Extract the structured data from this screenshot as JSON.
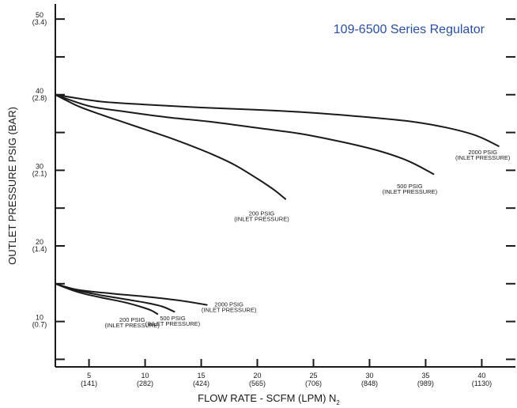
{
  "chart_data": {
    "type": "line",
    "title": "109-6500 Series Regulator",
    "title_color": "#2a4f9e",
    "xlabel": "FLOW RATE - SCFM (LPM) N",
    "xlabel_subscript": "2",
    "ylabel": "OUTLET PRESSURE PSIG (BAR)",
    "xlim": [
      2,
      43
    ],
    "ylim": [
      4,
      52
    ],
    "grid": false,
    "x_ticks": [
      {
        "value": 5,
        "label": "5",
        "sublabel": "(141)"
      },
      {
        "value": 10,
        "label": "10",
        "sublabel": "(282)"
      },
      {
        "value": 15,
        "label": "15",
        "sublabel": "(424)"
      },
      {
        "value": 20,
        "label": "20",
        "sublabel": "(565)"
      },
      {
        "value": 25,
        "label": "25",
        "sublabel": "(706)"
      },
      {
        "value": 30,
        "label": "30",
        "sublabel": "(848)"
      },
      {
        "value": 35,
        "label": "35",
        "sublabel": "(989)"
      },
      {
        "value": 40,
        "label": "40",
        "sublabel": "(1130)"
      }
    ],
    "y_ticks": [
      {
        "value": 10,
        "label": "10",
        "sublabel": "(0.7)"
      },
      {
        "value": 20,
        "label": "20",
        "sublabel": "(1.4)"
      },
      {
        "value": 30,
        "label": "30",
        "sublabel": "(2.1)"
      },
      {
        "value": 40,
        "label": "40",
        "sublabel": "(2.8)"
      },
      {
        "value": 50,
        "label": "50",
        "sublabel": "(3.4)"
      }
    ],
    "y_minor_ticks": [
      5,
      15,
      25,
      35,
      45
    ],
    "series": [
      {
        "name": "2000 PSIG (INLET PRESSURE)",
        "label_lines": [
          "2000 PSIG",
          "(INLET PRESSURE)"
        ],
        "x": [
          2,
          6,
          10,
          15,
          20,
          25,
          30,
          34,
          37,
          39.5,
          41.5
        ],
        "y": [
          40,
          39.1,
          38.7,
          38.3,
          38,
          37.6,
          37,
          36.4,
          35.6,
          34.6,
          33.2
        ]
      },
      {
        "name": "500 PSIG (INLET PRESSURE)",
        "label_lines": [
          "500 PSIG",
          "(INLET PRESSURE)"
        ],
        "x": [
          2,
          5,
          8,
          12,
          16,
          20,
          24,
          28,
          31,
          33.5,
          35.7
        ],
        "y": [
          40,
          38.5,
          37.8,
          37,
          36.4,
          35.6,
          34.8,
          33.6,
          32.5,
          31.2,
          29.5
        ]
      },
      {
        "name": "200 PSIG (INLET PRESSURE)",
        "label_lines": [
          "200 PSIG",
          "(INLET PRESSURE)"
        ],
        "x": [
          2,
          4,
          6,
          8,
          10,
          12,
          14,
          16,
          18,
          20,
          21.5,
          22.5
        ],
        "y": [
          40,
          38.5,
          37.4,
          36.4,
          35.4,
          34.4,
          33.3,
          32.1,
          30.7,
          28.9,
          27.4,
          26.2
        ]
      },
      {
        "name": "2000 PSIG (INLET PRESSURE) - low",
        "label_lines": [
          "2000 PSIG",
          "(INLET PRESSURE)"
        ],
        "x": [
          2,
          4,
          7,
          10,
          13,
          15.5
        ],
        "y": [
          15,
          14.2,
          13.7,
          13.3,
          12.8,
          12.2
        ]
      },
      {
        "name": "500 PSIG (INLET PRESSURE) - low",
        "label_lines": [
          "500 PSIG",
          "(INLET PRESSURE)"
        ],
        "x": [
          2,
          4,
          6,
          8,
          10,
          11.5,
          12.6
        ],
        "y": [
          15,
          14.1,
          13.5,
          13,
          12.5,
          12,
          11.3
        ]
      },
      {
        "name": "200 PSIG (INLET PRESSURE) - low",
        "label_lines": [
          "200 PSIG",
          "(INLET PRESSURE)"
        ],
        "x": [
          2,
          4,
          6,
          8,
          9.5,
          10.5,
          11.1
        ],
        "y": [
          15,
          13.9,
          13.2,
          12.6,
          12,
          11.5,
          11
        ]
      }
    ],
    "line_color": "#1a1a1a"
  }
}
